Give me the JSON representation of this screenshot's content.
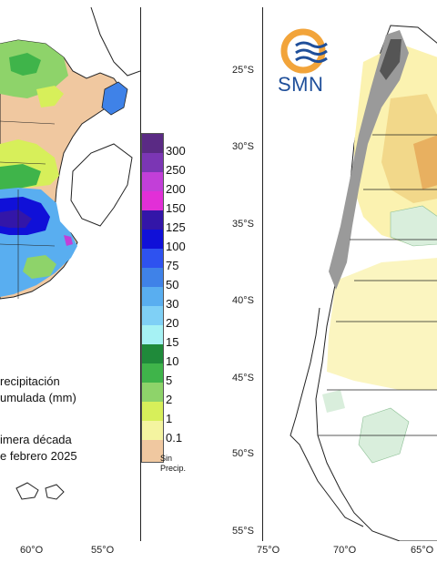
{
  "left_map": {
    "legend_title_line1": "recipitación",
    "legend_title_line2": "umulada (mm)",
    "period_line1": "imera década",
    "period_line2": "e febrero 2025",
    "x_ticks": [
      "60°O",
      "55°O"
    ],
    "scale": [
      {
        "label": "300",
        "color": "#5a2a84"
      },
      {
        "label": "250",
        "color": "#7b36b4"
      },
      {
        "label": "200",
        "color": "#c23fd8"
      },
      {
        "label": "150",
        "color": "#e22fd7"
      },
      {
        "label": "125",
        "color": "#3316a8"
      },
      {
        "label": "100",
        "color": "#1010d8"
      },
      {
        "label": "75",
        "color": "#2e52f0"
      },
      {
        "label": "50",
        "color": "#3f82e8"
      },
      {
        "label": "30",
        "color": "#59aef0"
      },
      {
        "label": "20",
        "color": "#7fd0f6"
      },
      {
        "label": "15",
        "color": "#a6f2f4"
      },
      {
        "label": "10",
        "color": "#1f8a3a"
      },
      {
        "label": "5",
        "color": "#3fb44a"
      },
      {
        "label": "2",
        "color": "#8ed36a"
      },
      {
        "label": "1",
        "color": "#d7ef5a"
      },
      {
        "label": "0.1",
        "color": "#f4f4a0"
      }
    ],
    "sin_precip_label_line1": "Sin",
    "sin_precip_label_line2": "Precip.",
    "sin_precip_color": "#f0c8a0"
  },
  "right_map": {
    "logo_text": "SMN",
    "y_ticks": [
      "25°S",
      "30°S",
      "35°S",
      "40°S",
      "45°S",
      "50°S",
      "55°S"
    ],
    "x_ticks": [
      "75°O",
      "70°O",
      "65°O"
    ]
  }
}
